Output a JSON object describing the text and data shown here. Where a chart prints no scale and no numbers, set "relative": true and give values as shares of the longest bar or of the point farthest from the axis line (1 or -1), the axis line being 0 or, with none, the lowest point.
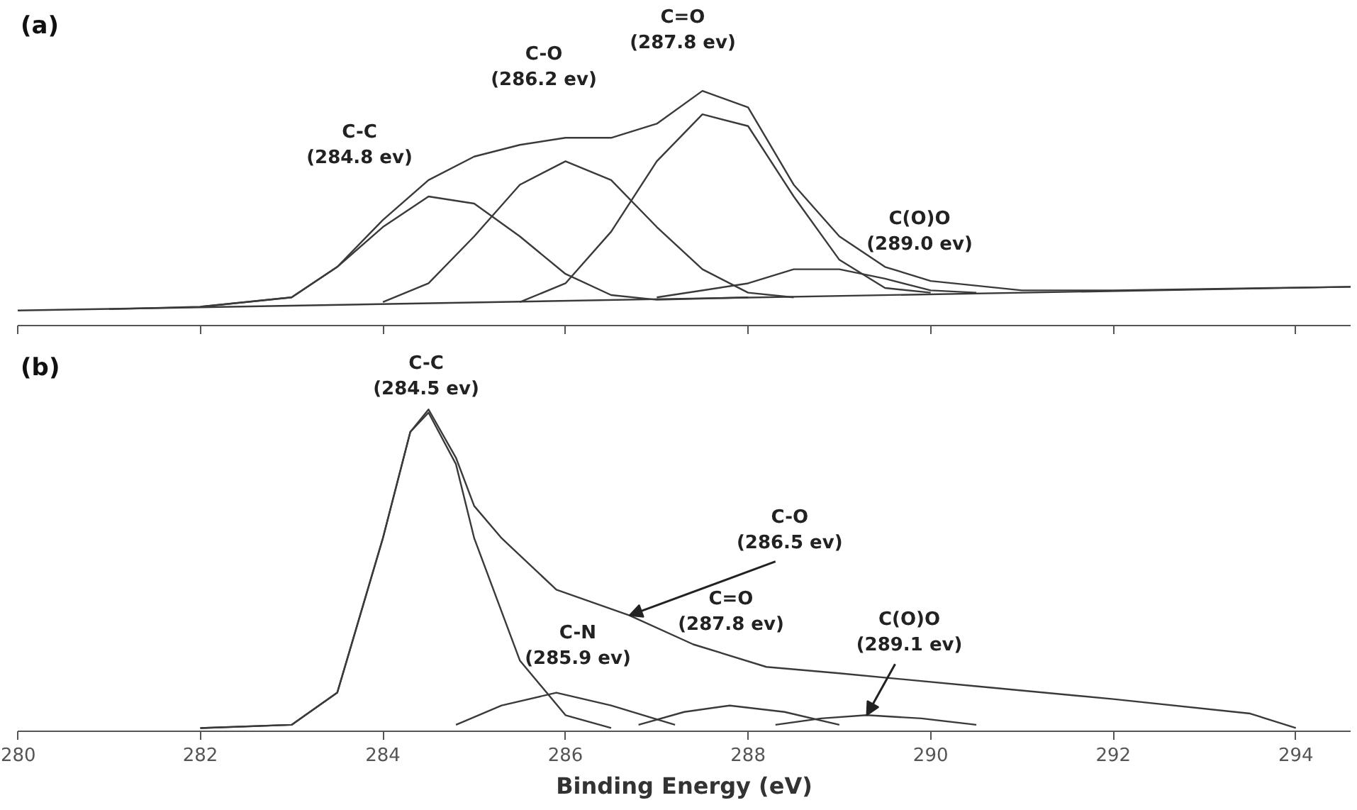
{
  "chart_data": [
    {
      "type": "line",
      "title": "(a)",
      "relative": true,
      "xlim": [
        280,
        294.6
      ],
      "xticks": [
        280,
        282,
        284,
        286,
        288,
        290,
        292,
        294
      ],
      "tick_labels": false,
      "grid": false,
      "series": [
        {
          "color": "#3a3a3a",
          "x": [
            280,
            294.6
          ],
          "values": [
            0.064,
            0.165
          ]
        },
        {
          "color": "#3a3a3a",
          "x": [
            281,
            282,
            283,
            283.5,
            284,
            284.5,
            285,
            285.5,
            286,
            286.5,
            287,
            287.5,
            288,
            288.5,
            289,
            289.5,
            290,
            291,
            292,
            294.6
          ],
          "values": [
            0.07,
            0.08,
            0.12,
            0.25,
            0.45,
            0.62,
            0.72,
            0.77,
            0.8,
            0.8,
            0.86,
            1.0,
            0.93,
            0.6,
            0.38,
            0.25,
            0.19,
            0.15,
            0.15,
            0.165
          ]
        },
        {
          "color": "#3a3a3a",
          "x": [
            282,
            283,
            283.5,
            284,
            284.5,
            285,
            285.5,
            286,
            286.5,
            287,
            288
          ],
          "values": [
            0.08,
            0.12,
            0.25,
            0.42,
            0.55,
            0.52,
            0.38,
            0.22,
            0.13,
            0.11,
            0.12
          ]
        },
        {
          "color": "#3a3a3a",
          "x": [
            284,
            284.5,
            285,
            285.5,
            286,
            286.5,
            287,
            287.5,
            288,
            288.5
          ],
          "values": [
            0.1,
            0.18,
            0.38,
            0.6,
            0.7,
            0.62,
            0.42,
            0.24,
            0.14,
            0.12
          ]
        },
        {
          "color": "#3a3a3a",
          "x": [
            285.5,
            286,
            286.5,
            287,
            287.5,
            288,
            288.5,
            289,
            289.5,
            290
          ],
          "values": [
            0.1,
            0.18,
            0.4,
            0.7,
            0.9,
            0.85,
            0.55,
            0.28,
            0.16,
            0.14
          ]
        },
        {
          "color": "#3a3a3a",
          "x": [
            287,
            288,
            288.5,
            289,
            289.5,
            290,
            290.5
          ],
          "values": [
            0.12,
            0.18,
            0.24,
            0.24,
            0.2,
            0.15,
            0.14
          ]
        }
      ],
      "annotations": [
        "C-C\n(284.8 ev)",
        "C-O\n(286.2 ev)",
        "C=O\n(287.8 ev)",
        "C(O)O\n(289.0 ev)"
      ]
    },
    {
      "type": "line",
      "title": "(b)",
      "relative": true,
      "xlim": [
        280,
        294.6
      ],
      "xticks": [
        280,
        282,
        284,
        286,
        288,
        290,
        292,
        294
      ],
      "tick_labels": "x",
      "xlabel": "Binding Energy (eV)",
      "grid": false,
      "series": [
        {
          "color": "#3a3a3a",
          "x": [
            282,
            283,
            283.5,
            284,
            284.3,
            284.5,
            284.8,
            285,
            285.3,
            285.9,
            286.7,
            287.4,
            288.2,
            289,
            290.5,
            292,
            293.5,
            294
          ],
          "values": [
            0.01,
            0.02,
            0.12,
            0.6,
            0.93,
            1.0,
            0.85,
            0.7,
            0.6,
            0.44,
            0.36,
            0.27,
            0.2,
            0.18,
            0.14,
            0.1,
            0.055,
            0.01
          ]
        },
        {
          "color": "#3a3a3a",
          "x": [
            282,
            283,
            283.5,
            284,
            284.3,
            284.5,
            284.8,
            285,
            285.5,
            286,
            286.5
          ],
          "values": [
            0.01,
            0.02,
            0.12,
            0.6,
            0.93,
            0.99,
            0.83,
            0.6,
            0.22,
            0.05,
            0.01
          ]
        },
        {
          "color": "#3a3a3a",
          "x": [
            284.8,
            285.3,
            285.9,
            286.5,
            287.2
          ],
          "values": [
            0.02,
            0.08,
            0.12,
            0.08,
            0.02
          ]
        },
        {
          "color": "#3a3a3a",
          "x": [
            286.8,
            287.3,
            287.8,
            288.4,
            289
          ],
          "values": [
            0.02,
            0.06,
            0.08,
            0.06,
            0.02
          ]
        },
        {
          "color": "#3a3a3a",
          "x": [
            288.3,
            288.8,
            289.3,
            289.9,
            290.5
          ],
          "values": [
            0.02,
            0.04,
            0.05,
            0.04,
            0.02
          ]
        }
      ],
      "annotations": [
        "C-C\n(284.5 ev)",
        "C-N\n(285.9 ev)",
        {
          "text": "C-O\n(286.5 ev)",
          "x": 286.7,
          "y": 0.36
        },
        "C=O\n(287.8 ev)",
        {
          "text": "C(O)O\n(289.1 ev)",
          "x": 289.3,
          "y": 0.05
        }
      ]
    }
  ]
}
